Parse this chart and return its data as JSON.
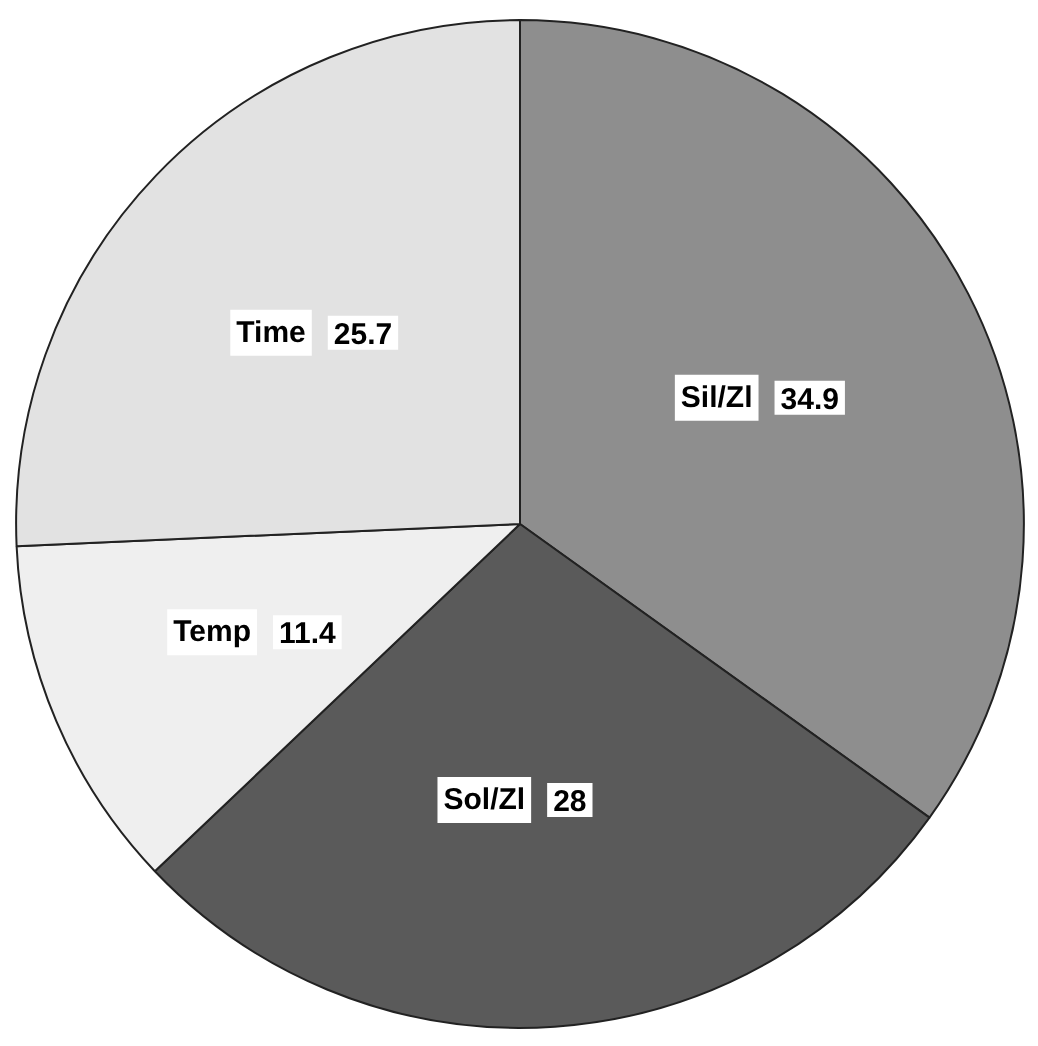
{
  "chart_data": {
    "type": "pie",
    "categories": [
      "Sil/Zl",
      "Sol/Zl",
      "Temp",
      "Time"
    ],
    "values": [
      34.9,
      28,
      11.4,
      25.7
    ],
    "colors": [
      "#8e8e8e",
      "#5a5a5a",
      "#efefef",
      "#e2e2e2"
    ],
    "data_labels": true
  }
}
